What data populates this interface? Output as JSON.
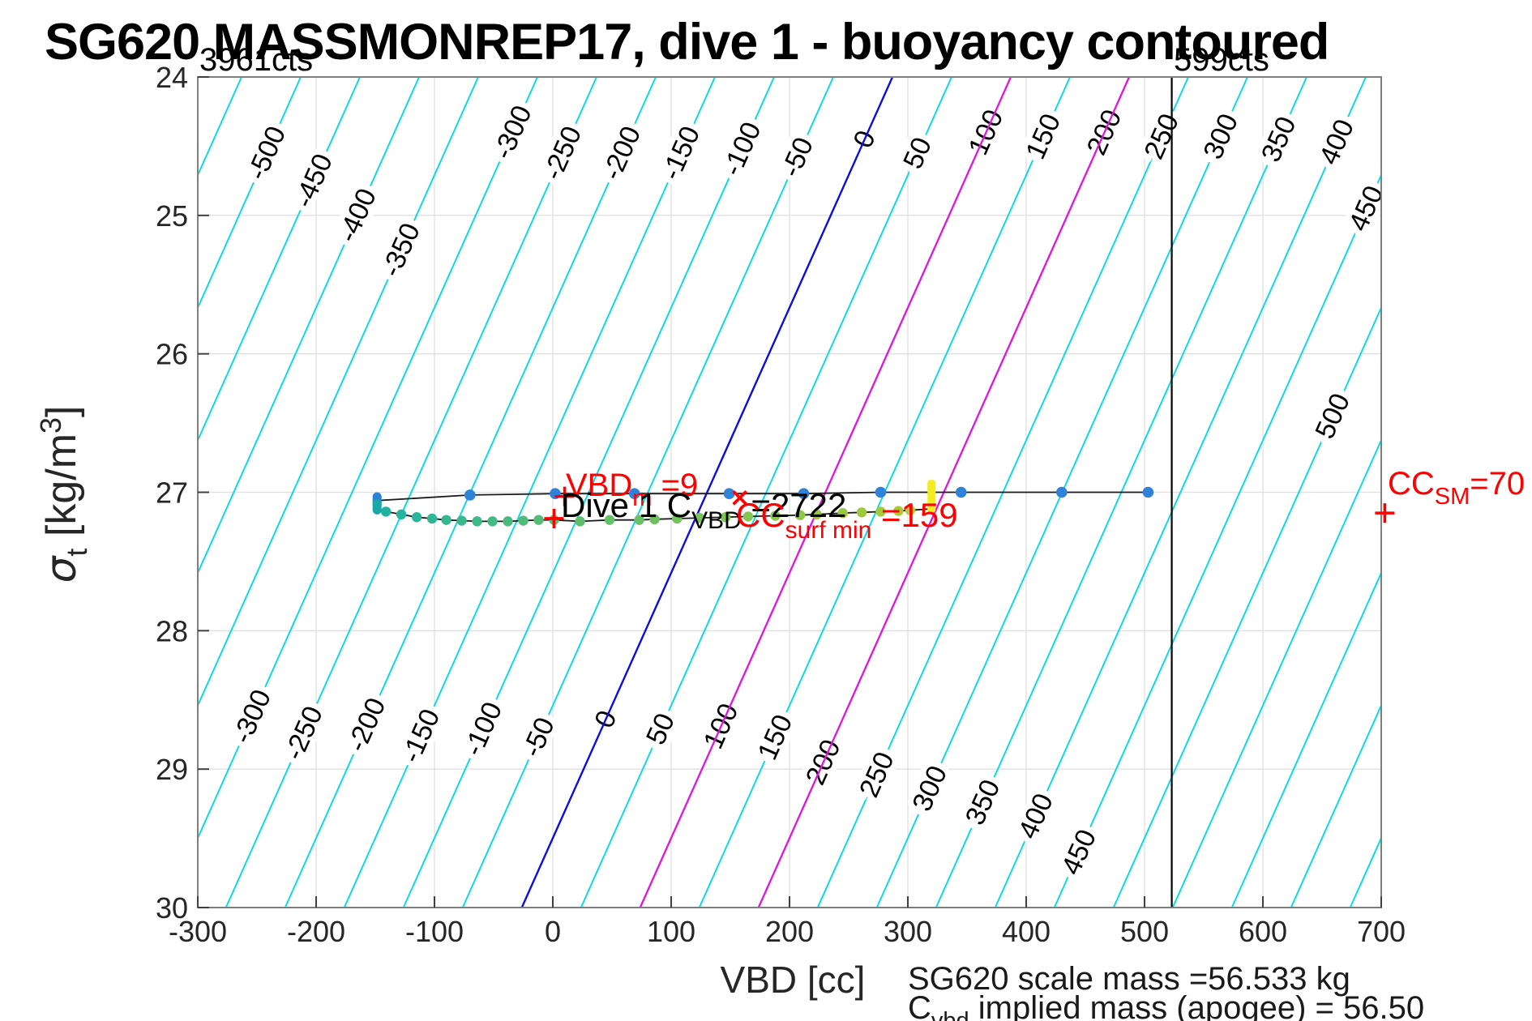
{
  "figure": {
    "title": "SG620 MASSMONREP17, dive 1 - buoyancy contoured"
  },
  "corner_labels": {
    "left_counts": "3961cts",
    "right_counts": "599cts"
  },
  "axis": {
    "xlabel": "VBD [cc]",
    "ylabel_sigma": "σ",
    "ylabel_sigma_sub": "t",
    "ylabel_units_open": " [kg/m",
    "ylabel_units_sup": "3",
    "ylabel_units_close": "]"
  },
  "annotations": {
    "vbd_m": {
      "main": "VBD",
      "sub": "m",
      "rest": " =9"
    },
    "dive": {
      "main": "Dive 1 C",
      "sub": "VBD",
      "rest": " =2722"
    },
    "cc_surf": {
      "main": "CC",
      "sub": "surf min",
      "rest": " =159"
    },
    "cc_sm": {
      "main": "CC",
      "sub": "SM",
      "rest": "=70"
    }
  },
  "footer": {
    "line1": "SG620 scale mass =56.533 kg",
    "line2_main": "C",
    "line2_sub": "vbd",
    "line2_rest": " implied mass (apogee) = 56.50"
  },
  "chart_data": {
    "type": "line",
    "title": "SG620 MASSMONREP17, dive 1 - buoyancy contoured",
    "xlabel": "VBD [cc]",
    "ylabel": "sigma_t [kg/m3]",
    "xlim": [
      -300,
      700
    ],
    "ylim": [
      24,
      30
    ],
    "y_axis_reversed": true,
    "grid": true,
    "xticks": [
      -300,
      -200,
      -100,
      0,
      100,
      200,
      300,
      400,
      500,
      600,
      700
    ],
    "yticks": [
      24,
      25,
      26,
      27,
      28,
      29,
      30
    ],
    "contours": {
      "comment": "buoyancy contour value c crosses sigma line at VBD = c + 287 - 52.2*(sigma-24)",
      "offset_at_24": 287,
      "slope_cc_per_sigma": -52.2,
      "level_min": -550,
      "level_max": 700,
      "level_step": 50,
      "base_color": "#00dbe6",
      "zero_level": 0,
      "zero_color": "#0d0de0",
      "highlight_levels": [
        100,
        200
      ],
      "highlight_color": "#e214e2",
      "labels": [
        {
          "level": -500,
          "sigma": 24.55
        },
        {
          "level": -450,
          "sigma": 24.75
        },
        {
          "level": -400,
          "sigma": 25.0
        },
        {
          "level": -350,
          "sigma": 25.25
        },
        {
          "level": -300,
          "sigma": 24.4
        },
        {
          "level": -250,
          "sigma": 24.55
        },
        {
          "level": -200,
          "sigma": 24.55
        },
        {
          "level": -150,
          "sigma": 24.55
        },
        {
          "level": -100,
          "sigma": 24.52
        },
        {
          "level": -50,
          "sigma": 24.58
        },
        {
          "level": 0,
          "sigma": 24.45
        },
        {
          "level": 50,
          "sigma": 24.55
        },
        {
          "level": 100,
          "sigma": 24.4
        },
        {
          "level": 150,
          "sigma": 24.43
        },
        {
          "level": 200,
          "sigma": 24.4
        },
        {
          "level": 250,
          "sigma": 24.43
        },
        {
          "level": 300,
          "sigma": 24.43
        },
        {
          "level": 350,
          "sigma": 24.45
        },
        {
          "level": 400,
          "sigma": 24.47
        },
        {
          "level": 450,
          "sigma": 24.95
        },
        {
          "level": 500,
          "sigma": 26.45
        },
        {
          "level": -300,
          "sigma": 28.62
        },
        {
          "level": -250,
          "sigma": 28.74
        },
        {
          "level": -200,
          "sigma": 28.68
        },
        {
          "level": -150,
          "sigma": 28.76
        },
        {
          "level": -100,
          "sigma": 28.71
        },
        {
          "level": -50,
          "sigma": 28.77
        },
        {
          "level": 0,
          "sigma": 28.64
        },
        {
          "level": 50,
          "sigma": 28.71
        },
        {
          "level": 100,
          "sigma": 28.69
        },
        {
          "level": 150,
          "sigma": 28.77
        },
        {
          "level": 200,
          "sigma": 28.95
        },
        {
          "level": 250,
          "sigma": 29.04
        },
        {
          "level": 300,
          "sigma": 29.14
        },
        {
          "level": 350,
          "sigma": 29.24
        },
        {
          "level": 400,
          "sigma": 29.34
        },
        {
          "level": 450,
          "sigma": 29.6
        }
      ]
    },
    "vline": {
      "vbd_cc": 523,
      "color": "#000000",
      "label": "599cts"
    },
    "series": [
      {
        "name": "dive-trace",
        "line_color": "#1a1a1a",
        "dot_color": "#2f82d8",
        "points": [
          [
            -148,
            27.06
          ],
          [
            -70,
            27.02
          ],
          [
            2,
            27.01
          ],
          [
            69,
            27.01
          ],
          [
            149,
            27.01
          ],
          [
            212,
            27.01
          ],
          [
            277,
            27.0
          ],
          [
            345,
            27.0
          ],
          [
            430,
            27.0
          ],
          [
            503,
            27.0
          ]
        ]
      },
      {
        "name": "climb-trace",
        "line_color": "#1a1a1a",
        "dot_color_start": [
          26,
          178,
          164
        ],
        "dot_color_end": [
          182,
          204,
          45
        ],
        "points": [
          [
            -148,
            27.12
          ],
          [
            -141,
            27.14
          ],
          [
            -128,
            27.16
          ],
          [
            -115,
            27.18
          ],
          [
            -102,
            27.19
          ],
          [
            -90,
            27.2
          ],
          [
            -77,
            27.205
          ],
          [
            -64,
            27.21
          ],
          [
            -51,
            27.21
          ],
          [
            -38,
            27.21
          ],
          [
            -25,
            27.205
          ],
          [
            -12,
            27.2
          ],
          [
            1,
            27.2
          ],
          [
            23,
            27.21
          ],
          [
            48,
            27.2
          ],
          [
            73,
            27.2
          ],
          [
            86,
            27.195
          ],
          [
            105,
            27.19
          ],
          [
            124,
            27.185
          ],
          [
            146,
            27.18
          ],
          [
            165,
            27.175
          ],
          [
            188,
            27.17
          ],
          [
            209,
            27.165
          ],
          [
            223,
            27.16
          ],
          [
            245,
            27.15
          ],
          [
            261,
            27.145
          ],
          [
            277,
            27.14
          ],
          [
            292,
            27.135
          ],
          [
            302,
            27.13
          ],
          [
            320,
            27.12
          ]
        ]
      }
    ],
    "markers": {
      "start_capsule_blue": {
        "vbd_cc": -148.5,
        "sigma_top": 27.0,
        "sigma_bottom": 27.12,
        "color": "#2b7fd4"
      },
      "start_capsule_teal": {
        "vbd_cc": -148.5,
        "sigma_top": 27.05,
        "sigma_bottom": 27.16,
        "color": "#1aa7a7"
      },
      "yellow_bar": {
        "vbd_cc": 320,
        "sigma_top": 26.91,
        "sigma_bottom": 27.15,
        "color": "#f4ec1f"
      },
      "red_plus": [
        {
          "vbd_cc": 10,
          "sigma": 27.03
        },
        {
          "vbd_cc": 1,
          "sigma": 27.19
        },
        {
          "vbd_cc": 703,
          "sigma": 27.15
        }
      ],
      "red_cross": [
        {
          "vbd_cc": 158,
          "sigma": 27.04
        }
      ],
      "marker_color": "#ff0000"
    },
    "legend": null
  },
  "colors": {
    "grid": "#e0e0e0",
    "box": "#7f7f7f",
    "tick": "#404040",
    "tick_label": "#262626",
    "contour_label": "#000000"
  }
}
